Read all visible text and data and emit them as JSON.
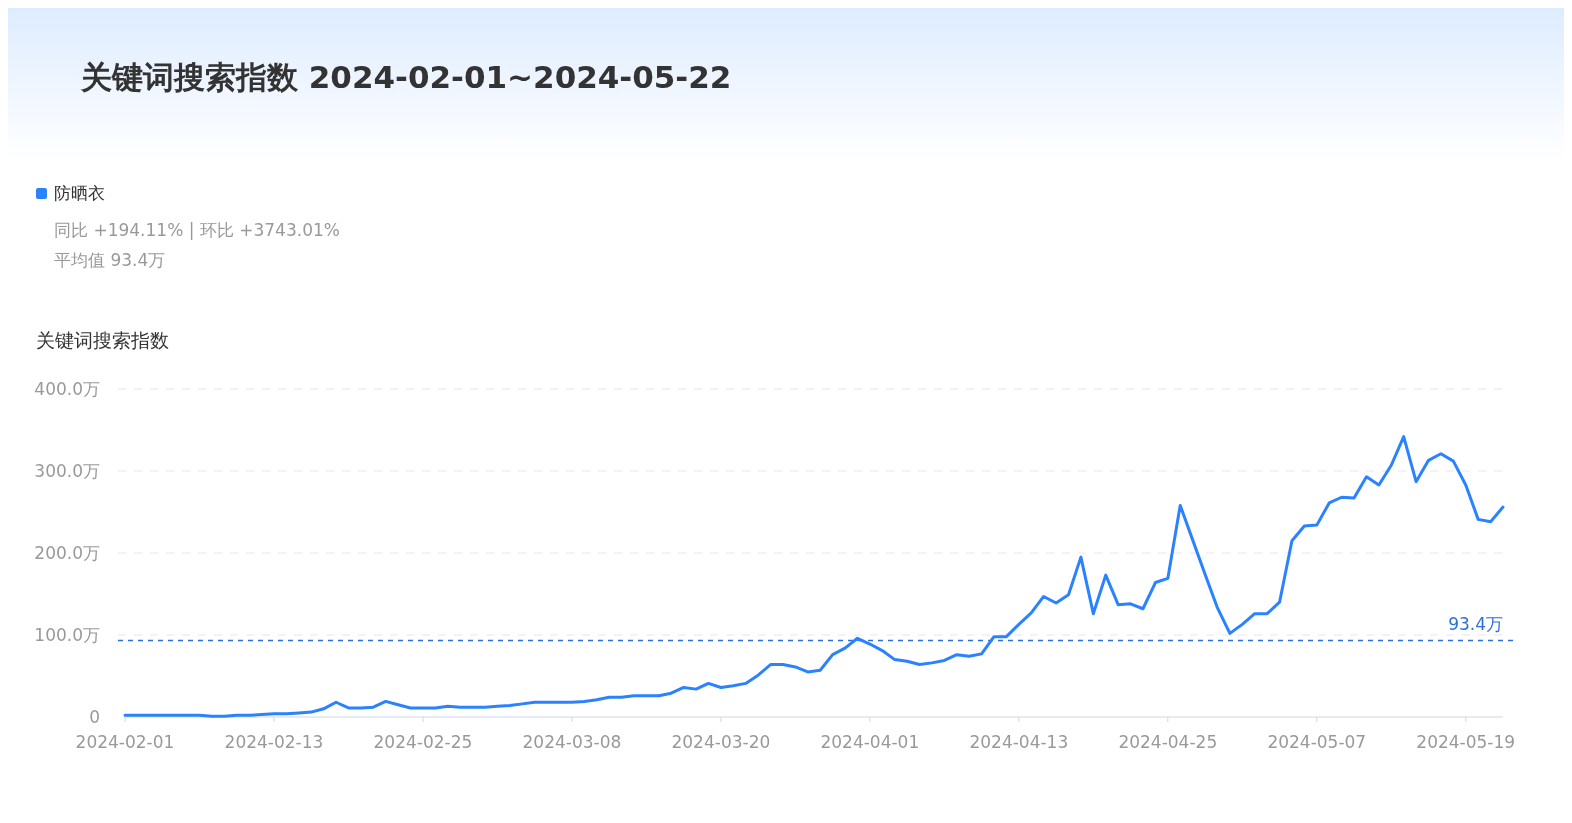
{
  "chart_data": {
    "type": "line",
    "title": "关键词搜索指数 2024-02-01~2024-05-22",
    "ylabel": "关键词搜索指数",
    "annotations": [
      "同比 +194.11% | 环比 +3743.01%",
      "平均值 93.4万"
    ],
    "x": [
      "2024-02-01",
      "2024-02-02",
      "2024-02-03",
      "2024-02-04",
      "2024-02-05",
      "2024-02-06",
      "2024-02-07",
      "2024-02-08",
      "2024-02-09",
      "2024-02-10",
      "2024-02-11",
      "2024-02-12",
      "2024-02-13",
      "2024-02-14",
      "2024-02-15",
      "2024-02-16",
      "2024-02-17",
      "2024-02-18",
      "2024-02-19",
      "2024-02-20",
      "2024-02-21",
      "2024-02-22",
      "2024-02-23",
      "2024-02-24",
      "2024-02-25",
      "2024-02-26",
      "2024-02-27",
      "2024-02-28",
      "2024-02-29",
      "2024-03-01",
      "2024-03-02",
      "2024-03-03",
      "2024-03-04",
      "2024-03-05",
      "2024-03-06",
      "2024-03-07",
      "2024-03-08",
      "2024-03-09",
      "2024-03-10",
      "2024-03-11",
      "2024-03-12",
      "2024-03-13",
      "2024-03-14",
      "2024-03-15",
      "2024-03-16",
      "2024-03-17",
      "2024-03-18",
      "2024-03-19",
      "2024-03-20",
      "2024-03-21",
      "2024-03-22",
      "2024-03-23",
      "2024-03-24",
      "2024-03-25",
      "2024-03-26",
      "2024-03-27",
      "2024-03-28",
      "2024-03-29",
      "2024-03-30",
      "2024-03-31",
      "2024-04-01",
      "2024-04-02",
      "2024-04-03",
      "2024-04-04",
      "2024-04-05",
      "2024-04-06",
      "2024-04-07",
      "2024-04-08",
      "2024-04-09",
      "2024-04-10",
      "2024-04-11",
      "2024-04-12",
      "2024-04-13",
      "2024-04-14",
      "2024-04-15",
      "2024-04-16",
      "2024-04-17",
      "2024-04-18",
      "2024-04-19",
      "2024-04-20",
      "2024-04-21",
      "2024-04-22",
      "2024-04-23",
      "2024-04-24",
      "2024-04-25",
      "2024-04-26",
      "2024-04-27",
      "2024-04-28",
      "2024-04-29",
      "2024-04-30",
      "2024-05-01",
      "2024-05-02",
      "2024-05-03",
      "2024-05-04",
      "2024-05-05",
      "2024-05-06",
      "2024-05-07",
      "2024-05-08",
      "2024-05-09",
      "2024-05-10",
      "2024-05-11",
      "2024-05-12",
      "2024-05-13",
      "2024-05-14",
      "2024-05-15",
      "2024-05-16",
      "2024-05-17",
      "2024-05-18",
      "2024-05-19",
      "2024-05-20",
      "2024-05-21",
      "2024-05-22"
    ],
    "series": [
      {
        "name": "防晒衣",
        "color": "#2a82ff",
        "values": [
          2,
          2,
          2,
          2,
          2,
          2,
          2,
          1,
          1,
          2,
          2,
          3,
          4,
          4,
          5,
          6,
          10,
          18,
          11,
          11,
          12,
          19,
          15,
          11,
          11,
          11,
          13,
          12,
          12,
          12,
          13,
          14,
          16,
          18,
          18,
          18,
          18,
          19,
          21,
          24,
          24,
          26,
          26,
          26,
          29,
          36,
          34,
          41,
          36,
          38,
          41,
          51,
          64,
          64,
          61,
          55,
          57,
          76,
          84,
          96,
          89,
          81,
          70,
          68,
          64,
          66,
          69,
          76,
          74,
          77,
          98,
          98,
          113,
          127,
          147,
          139,
          149,
          195,
          126,
          173,
          137,
          138,
          132,
          164,
          169,
          258,
          216,
          174,
          133,
          102,
          113,
          126,
          126,
          140,
          215,
          233,
          234,
          261,
          268,
          267,
          293,
          283,
          307,
          342,
          287,
          313,
          321,
          312,
          283,
          241,
          238,
          256
        ]
      }
    ],
    "xlim": [
      "2024-02-01",
      "2024-05-22"
    ],
    "xticks": [
      "2024-02-01",
      "2024-02-13",
      "2024-02-25",
      "2024-03-08",
      "2024-03-20",
      "2024-04-01",
      "2024-04-13",
      "2024-04-25",
      "2024-05-07",
      "2024-05-19"
    ],
    "ylim": [
      0,
      400
    ],
    "yticks": [
      0,
      {
        "value": 100,
        "label": "100.0万"
      },
      {
        "value": 200,
        "label": "200.0万"
      },
      {
        "value": 300,
        "label": "300.0万"
      },
      {
        "value": 400,
        "label": "400.0万"
      }
    ],
    "grid": "y",
    "legend": "top left",
    "line_style": "solid",
    "ref_lines": [
      {
        "axis": "y",
        "value": 93.4,
        "label": "93.4万",
        "color": "#2a6fdb",
        "line_style": "dashed"
      }
    ]
  }
}
